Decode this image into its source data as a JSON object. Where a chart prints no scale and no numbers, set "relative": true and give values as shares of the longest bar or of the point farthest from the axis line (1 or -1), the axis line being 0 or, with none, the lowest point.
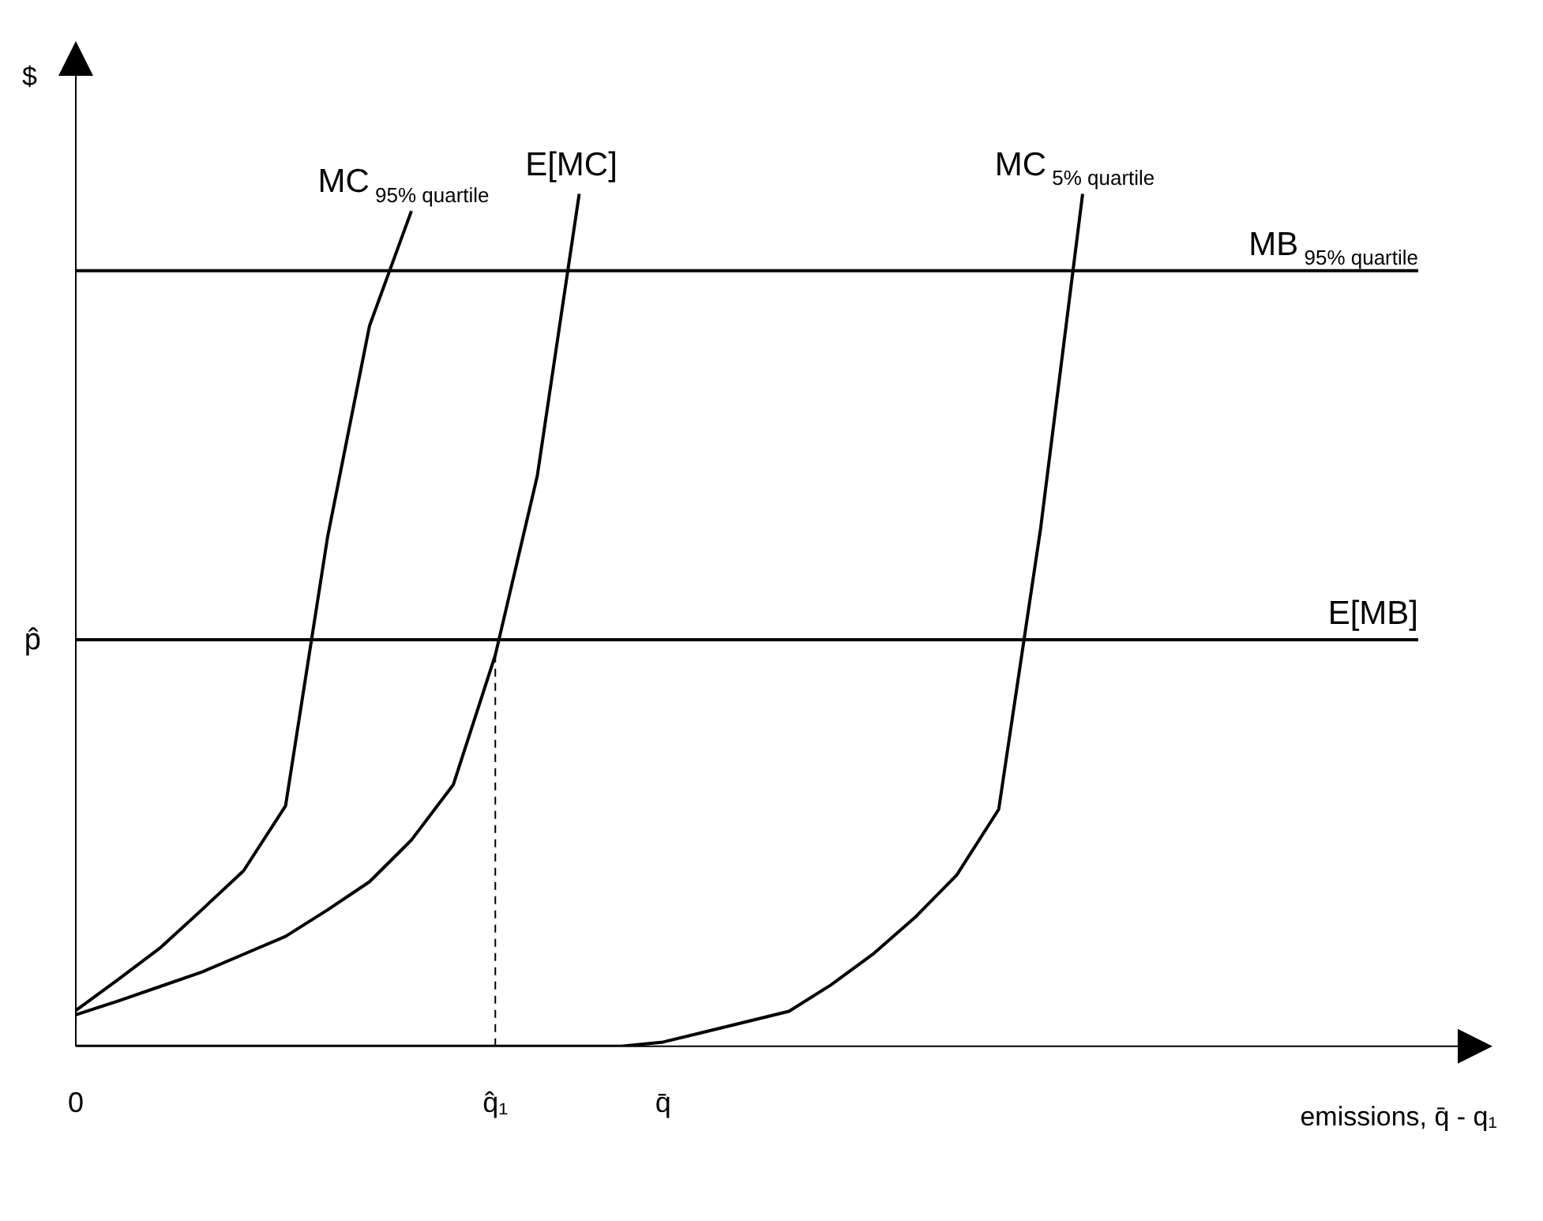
{
  "chart_data": {
    "type": "line",
    "relative": true,
    "xlabel": "emissions, q̄ - q₁",
    "ylabel": "$",
    "categories": [
      "0",
      null,
      null,
      null,
      null,
      null,
      null,
      null,
      null,
      null,
      "q̂₁",
      null,
      null,
      null,
      "q̄",
      null,
      null,
      null,
      null,
      null,
      null,
      null,
      null,
      null,
      null,
      null,
      null,
      null,
      null,
      null,
      null,
      null,
      null
    ],
    "annotations": [
      {
        "text": "p̂",
        "x": "0",
        "y": 0.477
      }
    ],
    "ref_lines": [
      {
        "axis": "x",
        "value": "q̂₁",
        "color": "#000000",
        "line_style": "dashed"
      }
    ],
    "legend": false,
    "marker": "none",
    "series": [
      {
        "name": "MC$_{95% quartile}$",
        "color": "#000000",
        "values": [
          0.042,
          0.078,
          0.115,
          0.16,
          0.206,
          0.282,
          0.597,
          0.845,
          0.98,
          null,
          null,
          null,
          null,
          null,
          null,
          null,
          null,
          null,
          null,
          null,
          null,
          null,
          null,
          null,
          null,
          null,
          null,
          null,
          null,
          null,
          null,
          null,
          null
        ]
      },
      {
        "name": "E[MC]",
        "color": "#000000",
        "values": [
          0.037,
          0.053,
          0.07,
          0.087,
          0.108,
          0.129,
          0.16,
          0.193,
          0.242,
          0.307,
          0.459,
          0.669,
          1.0,
          null,
          null,
          null,
          null,
          null,
          null,
          null,
          null,
          null,
          null,
          null,
          null,
          null,
          null,
          null,
          null,
          null,
          null,
          null,
          null
        ]
      },
      {
        "name": "MC$_{5% quartile}$",
        "color": "#000000",
        "values": [
          0,
          0,
          0,
          0,
          0,
          0,
          0,
          0,
          0,
          0,
          0,
          0,
          0,
          0,
          0.005,
          0.017,
          0.029,
          0.041,
          0.072,
          0.108,
          0.151,
          0.201,
          0.278,
          0.608,
          1.0,
          null,
          null,
          null,
          null,
          null,
          null,
          null,
          null
        ]
      },
      {
        "name": "MB$_{95% quartile}$",
        "color": "#000000",
        "values": [
          0.91,
          0.91,
          0.91,
          0.91,
          0.91,
          0.91,
          0.91,
          0.91,
          0.91,
          0.91,
          0.91,
          0.91,
          0.91,
          0.91,
          0.91,
          0.91,
          0.91,
          0.91,
          0.91,
          0.91,
          0.91,
          0.91,
          0.91,
          0.91,
          0.91,
          0.91,
          0.91,
          0.91,
          0.91,
          0.91,
          0.91,
          0.91,
          0.91
        ]
      },
      {
        "name": "E[MB]",
        "color": "#000000",
        "values": [
          0.477,
          0.477,
          0.477,
          0.477,
          0.477,
          0.477,
          0.477,
          0.477,
          0.477,
          0.477,
          0.477,
          0.477,
          0.477,
          0.477,
          0.477,
          0.477,
          0.477,
          0.477,
          0.477,
          0.477,
          0.477,
          0.477,
          0.477,
          0.477,
          0.477,
          0.477,
          0.477,
          0.477,
          0.477,
          0.477,
          0.477,
          0.477,
          0.477
        ]
      }
    ]
  }
}
